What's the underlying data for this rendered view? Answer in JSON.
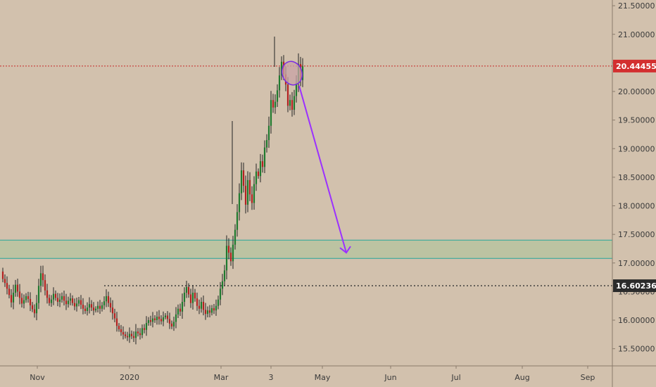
{
  "colors": {
    "background": "#d2c1ad",
    "up_candle": "#1f7a2f",
    "down_candle": "#b32121",
    "wick": "#222222",
    "axis_line": "#8a7b6b",
    "axis_text": "#3a3a3a",
    "current_price_line": "#c62828",
    "current_price_badge": "#d32f2f",
    "support_line": "#333333",
    "support_badge": "#2b2b2b",
    "zone_fill": "#b9c3a1",
    "zone_border": "#26a69a",
    "annotation": "#9b30ff",
    "circle_fill": "#c8a1a6",
    "circle_stroke": "#7a2be2"
  },
  "chart_data": {
    "type": "candlestick",
    "ylim": [
      15.2,
      21.6
    ],
    "y_ticks": [
      "15.50000",
      "16.00000",
      "16.50000",
      "17.00000",
      "17.50000",
      "18.00000",
      "18.50000",
      "19.00000",
      "19.50000",
      "20.00000",
      "20.50000",
      "21.00000",
      "21.50000"
    ],
    "x_ticks": [
      "Nov",
      "2020",
      "Mar",
      "3",
      "May",
      "Jun",
      "Jul",
      "Aug",
      "Sep"
    ],
    "current_price": {
      "value": 20.44455,
      "label": "20.44455"
    },
    "support_level": {
      "value": 16.60236,
      "label": "16.60236"
    },
    "demand_zone": {
      "low": 17.08,
      "high": 17.4
    },
    "projection": {
      "from": 20.1,
      "to": 17.18
    },
    "highlight_circle": {
      "price": 20.32
    },
    "candles_note": "daily candles from mid-Oct 2019 to mid-Apr 2020",
    "closes": [
      16.72,
      16.65,
      16.55,
      16.44,
      16.31,
      16.48,
      16.62,
      16.5,
      16.39,
      16.29,
      16.35,
      16.42,
      16.37,
      16.26,
      16.19,
      16.12,
      16.3,
      16.6,
      16.82,
      16.7,
      16.52,
      16.39,
      16.3,
      16.36,
      16.46,
      16.39,
      16.32,
      16.36,
      16.42,
      16.34,
      16.28,
      16.34,
      16.38,
      16.3,
      16.24,
      16.29,
      16.35,
      16.27,
      16.2,
      16.16,
      16.22,
      16.28,
      16.22,
      16.17,
      16.2,
      16.25,
      16.2,
      16.26,
      16.33,
      16.42,
      16.3,
      16.22,
      16.12,
      16.03,
      15.9,
      15.84,
      15.79,
      15.75,
      15.72,
      15.7,
      15.76,
      15.72,
      15.69,
      15.8,
      15.77,
      15.74,
      15.86,
      15.83,
      15.95,
      16.0,
      15.97,
      16.03,
      16.0,
      16.06,
      16.02,
      15.98,
      16.05,
      16.08,
      16.02,
      15.94,
      15.89,
      15.97,
      16.1,
      16.2,
      16.15,
      16.32,
      16.48,
      16.58,
      16.45,
      16.3,
      16.48,
      16.38,
      16.25,
      16.2,
      16.32,
      16.18,
      16.11,
      16.17,
      16.13,
      16.21,
      16.17,
      16.25,
      16.36,
      16.55,
      16.68,
      16.87,
      17.3,
      17.18,
      17.03,
      17.32,
      17.58,
      17.89,
      18.22,
      18.62,
      18.35,
      18.02,
      18.45,
      18.2,
      18.05,
      18.38,
      18.6,
      18.52,
      18.78,
      18.68,
      19.02,
      19.15,
      19.4,
      19.85,
      19.72,
      19.82,
      20.02,
      20.28,
      20.52,
      20.3,
      20.12,
      19.75,
      19.85,
      19.68,
      19.92,
      20.15,
      20.48,
      20.2,
      20.44
    ]
  },
  "ohlc_note": "candle OHLC derived from closes in script"
}
